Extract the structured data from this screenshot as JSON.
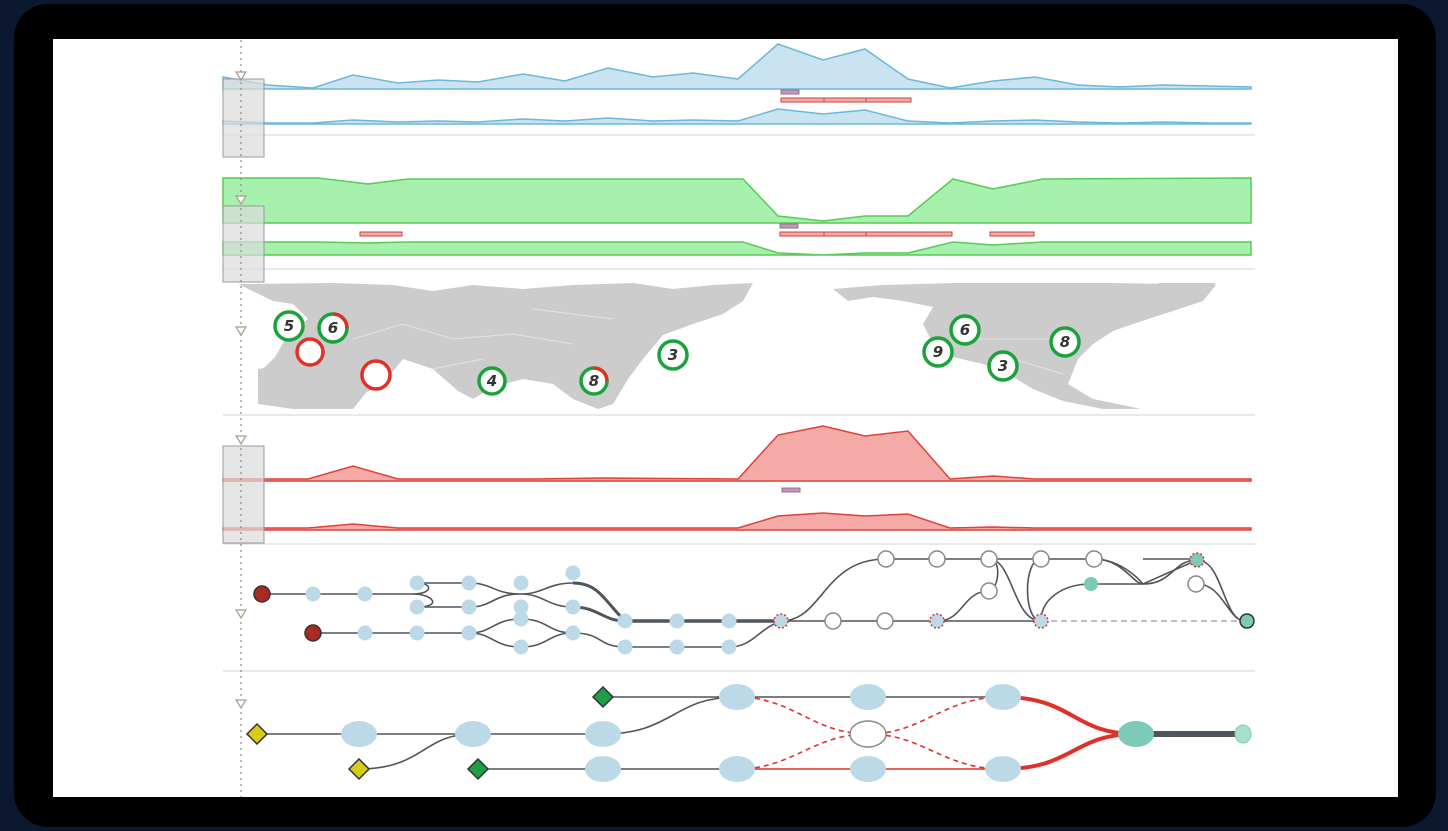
{
  "colors": {
    "blue_fill": "#c9e3f1",
    "blue_line": "#6bb8da",
    "green_fill": "#a8f0ae",
    "green_line": "#55cc55",
    "red_fill": "#f4aaa6",
    "red_line": "#e0413a",
    "map_land": "#cccccc",
    "marker_green": "#1aa33a",
    "marker_red": "#e0302a",
    "node_blue": "#bcd9e8",
    "node_teal": "#7dcab8",
    "node_darkred": "#a82a20",
    "diamond_yellow": "#d8cc1a",
    "diamond_green": "#1f9e4a",
    "edge": "#4f555a"
  },
  "map": {
    "markers": [
      {
        "label": "5",
        "ring": "green"
      },
      {
        "label": "6",
        "ring": "green-red"
      },
      {
        "label": "",
        "ring": "red"
      },
      {
        "label": "",
        "ring": "red"
      },
      {
        "label": "4",
        "ring": "green"
      },
      {
        "label": "8",
        "ring": "green-red"
      },
      {
        "label": "3",
        "ring": "green"
      },
      {
        "label": "6",
        "ring": "green"
      },
      {
        "label": "9",
        "ring": "green"
      },
      {
        "label": "3",
        "ring": "green"
      },
      {
        "label": "8",
        "ring": "green"
      }
    ]
  },
  "icons": {
    "timeline_cursor": "dotted-vertical-line",
    "collapse_marker": "down-triangle-icon",
    "brush_handle": "gray-rectangle"
  }
}
